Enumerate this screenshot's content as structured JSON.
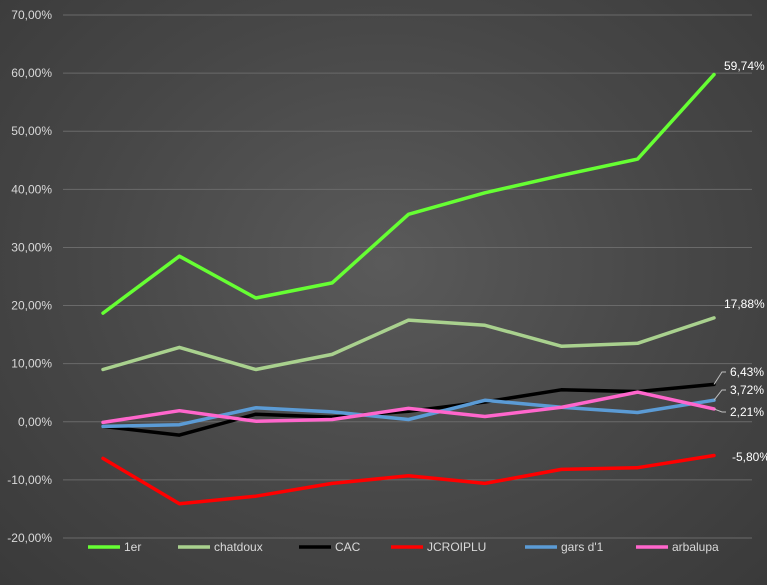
{
  "chart_data": {
    "type": "line",
    "x": [
      1,
      2,
      3,
      4,
      5,
      6,
      7,
      8,
      9
    ],
    "ylim": [
      -20,
      70
    ],
    "ytick_labels": [
      "70,00%",
      "60,00%",
      "50,00%",
      "40,00%",
      "30,00%",
      "20,00%",
      "10,00%",
      "0,00%",
      "-10,00%",
      "-20,00%"
    ],
    "yticks": [
      70,
      60,
      50,
      40,
      30,
      20,
      10,
      0,
      -10,
      -20
    ],
    "grid": true,
    "legend_position": "bottom",
    "series": [
      {
        "name": "1er",
        "color": "#66ff33",
        "values": [
          18.7,
          28.5,
          21.3,
          23.9,
          35.7,
          39.4,
          42.4,
          45.2,
          59.74
        ],
        "end_label": "59,74%"
      },
      {
        "name": "chatdoux",
        "color": "#a9d18e",
        "values": [
          9.0,
          12.8,
          9.0,
          11.6,
          17.5,
          16.6,
          13.0,
          13.5,
          17.88
        ],
        "end_label": "17,88%"
      },
      {
        "name": "CAC",
        "color": "#000000",
        "values": [
          -0.8,
          -2.3,
          1.3,
          0.8,
          1.8,
          3.4,
          5.5,
          5.2,
          6.43
        ],
        "end_label": "6,43%"
      },
      {
        "name": "JCROIPLU",
        "color": "#ff0000",
        "values": [
          -6.3,
          -14.1,
          -12.8,
          -10.6,
          -9.3,
          -10.6,
          -8.2,
          -7.9,
          -5.8
        ],
        "end_label": "-5,80%"
      },
      {
        "name": "gars d'1",
        "color": "#5b9bd5",
        "values": [
          -0.8,
          -0.5,
          2.4,
          1.7,
          0.4,
          3.7,
          2.5,
          1.6,
          3.72
        ],
        "end_label": "3,72%"
      },
      {
        "name": "arbalupa",
        "color": "#ff66cc",
        "values": [
          -0.1,
          1.9,
          0.1,
          0.4,
          2.3,
          0.9,
          2.5,
          5.1,
          2.21
        ],
        "end_label": "2,21%"
      }
    ]
  }
}
